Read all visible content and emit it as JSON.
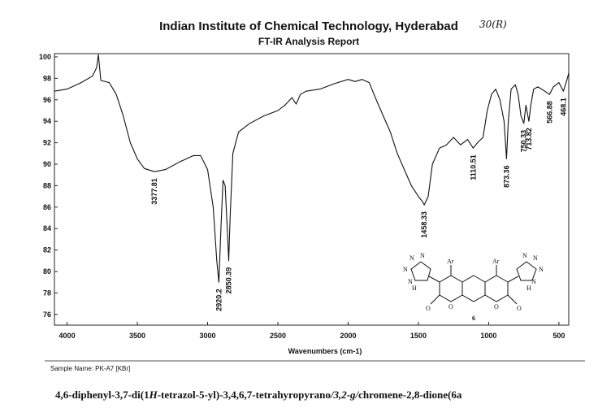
{
  "chart_data": {
    "type": "line",
    "title": "Indian Institute of Chemical Technology, Hyderabad",
    "subtitle": "FT-IR Analysis Report",
    "handwritten_note": "30(R)",
    "x_label": "Wavenumbers (cm-1)",
    "sample_name": "Sample Name: PK-A7 [KBr]",
    "color": "#111111",
    "xlim": [
      4090,
      430
    ],
    "ylim": [
      75,
      100.3
    ],
    "xticks": [
      4000,
      3500,
      3000,
      2500,
      2000,
      1500,
      1000,
      500
    ],
    "yticks": [
      76,
      78,
      80,
      82,
      84,
      86,
      88,
      90,
      92,
      94,
      96,
      98,
      100
    ],
    "x": [
      4090,
      4000,
      3900,
      3820,
      3790,
      3777,
      3760,
      3700,
      3650,
      3600,
      3550,
      3500,
      3450,
      3378,
      3300,
      3200,
      3100,
      3050,
      3000,
      2960,
      2935,
      2920,
      2905,
      2890,
      2875,
      2860,
      2850,
      2840,
      2820,
      2780,
      2700,
      2600,
      2500,
      2450,
      2400,
      2370,
      2340,
      2300,
      2200,
      2100,
      2000,
      1950,
      1900,
      1850,
      1800,
      1750,
      1700,
      1650,
      1600,
      1550,
      1500,
      1470,
      1458,
      1430,
      1400,
      1350,
      1300,
      1250,
      1200,
      1150,
      1110,
      1080,
      1040,
      1010,
      980,
      950,
      920,
      890,
      873,
      860,
      840,
      810,
      790,
      770,
      750,
      735,
      714,
      700,
      680,
      650,
      600,
      567,
      540,
      500,
      468,
      440,
      430
    ],
    "values": [
      96.8,
      97.0,
      97.6,
      98.2,
      99.0,
      100.2,
      97.8,
      97.6,
      96.5,
      94.5,
      92.0,
      90.5,
      89.6,
      89.3,
      89.5,
      90.2,
      90.8,
      90.8,
      89.5,
      86.0,
      81.0,
      79.0,
      84.0,
      88.5,
      88.0,
      84.0,
      81.0,
      85.0,
      91.0,
      93.0,
      93.8,
      94.5,
      95.0,
      95.5,
      96.2,
      95.6,
      96.5,
      96.8,
      97.0,
      97.5,
      97.9,
      97.7,
      97.9,
      97.6,
      96.0,
      94.5,
      93.0,
      91.0,
      89.5,
      88.0,
      87.0,
      86.5,
      86.2,
      87.0,
      90.0,
      91.5,
      91.8,
      92.5,
      91.8,
      92.3,
      91.5,
      92.0,
      92.5,
      95.0,
      96.5,
      97.0,
      96.0,
      94.0,
      90.5,
      94.0,
      97.0,
      97.4,
      96.5,
      94.5,
      93.8,
      95.5,
      94.0,
      95.5,
      97.0,
      97.2,
      96.8,
      96.5,
      97.2,
      97.6,
      96.8,
      98.0,
      98.5
    ],
    "peak_labels": [
      {
        "x": 3377.81,
        "y": 89.3
      },
      {
        "x": 2920.2,
        "y": 79.0
      },
      {
        "x": 2850.39,
        "y": 81.0
      },
      {
        "x": 1458.33,
        "y": 86.2
      },
      {
        "x": 1110.51,
        "y": 91.5
      },
      {
        "x": 873.36,
        "y": 90.5
      },
      {
        "x": 750.33,
        "y": 93.8
      },
      {
        "x": 713.82,
        "y": 94.0
      },
      {
        "x": 566.88,
        "y": 96.5
      },
      {
        "x": 468.1,
        "y": 96.8
      }
    ]
  },
  "structure": {
    "label": "6",
    "atoms": [
      "N",
      "N",
      "N",
      "N",
      "H",
      "Ar",
      "Ar",
      "N",
      "N",
      "N",
      "N",
      "H",
      "O",
      "O",
      "O",
      "O"
    ]
  },
  "caption": [
    "4,6-diphenyl-3,7-di(1",
    "H",
    "-tetrazol-5-yl)-3,4,6,7-tetrahyropyrano",
    "/3,2-g/",
    "chromene-2,8-dione(6a"
  ]
}
